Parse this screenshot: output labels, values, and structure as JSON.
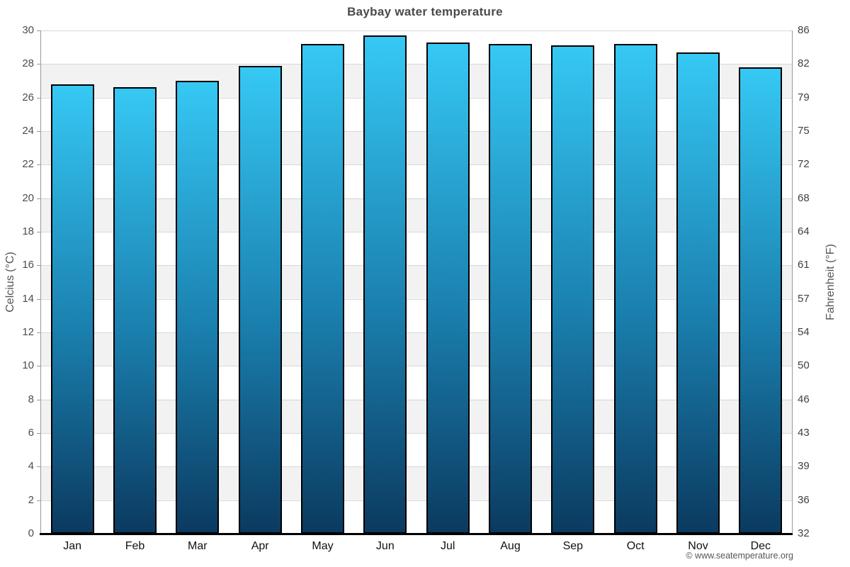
{
  "title": "Baybay water temperature",
  "footer": {
    "copyright": "© www.seatemperature.org"
  },
  "chart_data": {
    "type": "bar",
    "title": "Baybay water temperature",
    "categories": [
      "Jan",
      "Feb",
      "Mar",
      "Apr",
      "May",
      "Jun",
      "Jul",
      "Aug",
      "Sep",
      "Oct",
      "Nov",
      "Dec"
    ],
    "values": [
      26.8,
      26.6,
      27.0,
      27.9,
      29.2,
      29.7,
      29.3,
      29.2,
      29.1,
      29.2,
      28.7,
      27.8
    ],
    "unit": "°C",
    "ylabel_left": "Celcius (°C)",
    "ylabel_right": "Fahrenheit (°F)",
    "ylim_celsius": [
      0,
      30
    ],
    "celsius_ticks": [
      0,
      2,
      4,
      6,
      8,
      10,
      12,
      14,
      16,
      18,
      20,
      22,
      24,
      26,
      28,
      30
    ],
    "fahrenheit_tick_labels": [
      "32",
      "36",
      "39",
      "43",
      "46",
      "50",
      "54",
      "57",
      "61",
      "64",
      "68",
      "72",
      "75",
      "79",
      "82",
      "86"
    ],
    "grid": true,
    "legend": "none",
    "plot_band_colors": [
      "#ffffff",
      "#f2f2f2"
    ],
    "gridline_color": "#d8d8d8",
    "bar_gradient_top": "#36c8f4",
    "bar_gradient_mid": "#1a7fae",
    "bar_gradient_bottom": "#0b3a60",
    "bar_border_color": "#000000"
  }
}
